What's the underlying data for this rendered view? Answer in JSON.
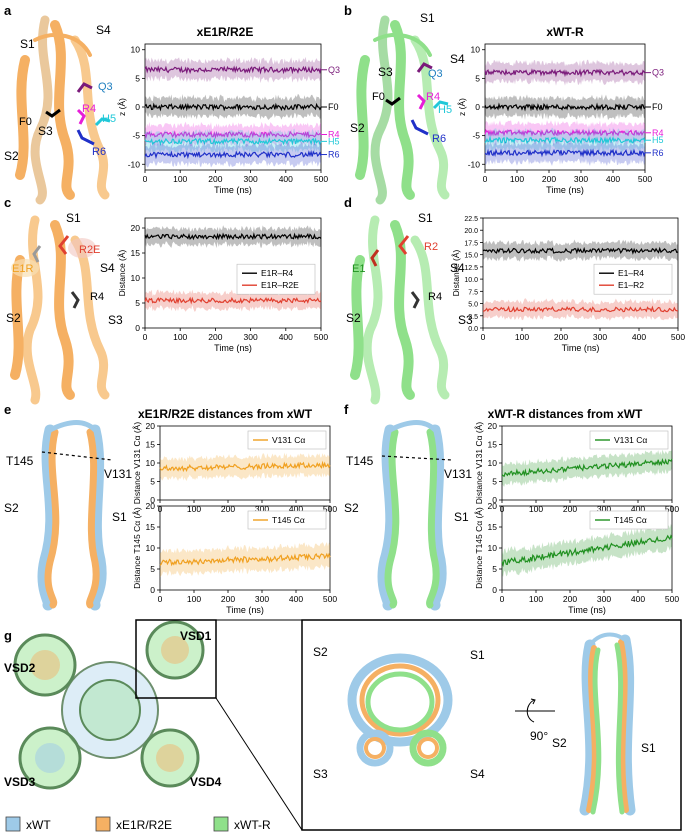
{
  "panel_letters": {
    "a": "a",
    "b": "b",
    "c": "c",
    "d": "d",
    "e": "e",
    "f": "f",
    "g": "g"
  },
  "titles": {
    "a": "xE1R/R2E",
    "b": "xWT-R",
    "e": "xE1R/R2E distances from xWT",
    "f": "xWT-R distances from xWT"
  },
  "structure_labels": {
    "a": {
      "S1": "S1",
      "S4": "S4",
      "Q3": "Q3",
      "R4": "R4",
      "F0": "F0",
      "S3": "S3",
      "H5": "H5",
      "S2": "S2",
      "R6": "R6"
    },
    "b": {
      "S1": "S1",
      "S3": "S3",
      "Q3": "Q3",
      "S4": "S4",
      "F0": "F0",
      "R4": "R4",
      "H5": "H5",
      "S2": "S2",
      "R6": "R6"
    },
    "c": {
      "S1": "S1",
      "R2E": "R2E",
      "E1R": "E1R",
      "S4": "S4",
      "R4": "R4",
      "S2": "S2",
      "S3": "S3"
    },
    "d": {
      "S1": "S1",
      "R2": "R2",
      "E1": "E1",
      "S4": "S4",
      "R4": "R4",
      "S2": "S2",
      "S3": "S3"
    },
    "e": {
      "T145": "T145",
      "V131": "V131",
      "S2": "S2",
      "S1": "S1"
    },
    "f": {
      "T145": "T145",
      "V131": "V131",
      "S2": "S2",
      "S1": "S1"
    },
    "g": {
      "VSD1": "VSD1",
      "VSD2": "VSD2",
      "VSD3": "VSD3",
      "VSD4": "VSD4",
      "S1": "S1",
      "S2": "S2",
      "S3": "S3",
      "S4": "S4",
      "S1b": "S1",
      "S2b": "S2",
      "rot": "90°"
    }
  },
  "legend_g": [
    {
      "label": "xWT",
      "color": "#9ecae8"
    },
    {
      "label": "xE1R/R2E",
      "color": "#f5b063"
    },
    {
      "label": "xWT-R",
      "color": "#8fe08a"
    }
  ],
  "colors": {
    "orange": "#f5b063",
    "green": "#8fe08a",
    "blue": "#9ecae8",
    "purple": "#7a1a7a",
    "black": "#000000",
    "grey": "#9a9a9a",
    "magenta": "#e61ed8",
    "cyan": "#20c8d8",
    "navy": "#2030c8",
    "red": "#e04030",
    "dkorange": "#f0a020",
    "dkgreen": "#209020"
  },
  "chart_data": [
    {
      "id": "a",
      "type": "line",
      "title": "xE1R/R2E",
      "xlabel": "Time (ns)",
      "ylabel": "z (Å)",
      "xlim": [
        0,
        500
      ],
      "ylim": [
        -11,
        11
      ],
      "xticks": [
        0,
        100,
        200,
        300,
        400,
        500
      ],
      "yticks": [
        -10,
        -5,
        0,
        5,
        10
      ],
      "series": [
        {
          "name": "Q3",
          "mean": 6.5,
          "color": "purple"
        },
        {
          "name": "F0",
          "mean": 0,
          "color": "black"
        },
        {
          "name": "R4",
          "mean": -4.8,
          "color": "magenta"
        },
        {
          "name": "H5",
          "mean": -6.0,
          "color": "cyan"
        },
        {
          "name": "R6",
          "mean": -8.3,
          "color": "navy"
        }
      ]
    },
    {
      "id": "b",
      "type": "line",
      "title": "xWT-R",
      "xlabel": "Time (ns)",
      "ylabel": "z (Å)",
      "xlim": [
        0,
        500
      ],
      "ylim": [
        -11,
        11
      ],
      "xticks": [
        0,
        100,
        200,
        300,
        400,
        500
      ],
      "yticks": [
        -10,
        -5,
        0,
        5,
        10
      ],
      "series": [
        {
          "name": "Q3",
          "mean": 6.0,
          "color": "purple"
        },
        {
          "name": "F0",
          "mean": 0,
          "color": "black"
        },
        {
          "name": "R4",
          "mean": -4.5,
          "color": "magenta"
        },
        {
          "name": "H5",
          "mean": -5.8,
          "color": "cyan"
        },
        {
          "name": "R6",
          "mean": -8.0,
          "color": "navy"
        }
      ]
    },
    {
      "id": "c",
      "type": "line",
      "xlabel": "Time (ns)",
      "ylabel": "Distance (Å)",
      "xlim": [
        0,
        500
      ],
      "ylim": [
        0,
        22
      ],
      "xticks": [
        0,
        100,
        200,
        300,
        400,
        500
      ],
      "yticks": [
        0,
        5,
        10,
        15,
        20
      ],
      "legend": [
        "E1R–R4",
        "E1R–R2E"
      ],
      "series": [
        {
          "name": "E1R–R4",
          "mean": 18.3,
          "color": "black"
        },
        {
          "name": "E1R–R2E",
          "mean": 5.5,
          "color": "red"
        }
      ]
    },
    {
      "id": "d",
      "type": "line",
      "xlabel": "Time (ns)",
      "ylabel": "Distance (Å)",
      "xlim": [
        0,
        500
      ],
      "ylim": [
        0,
        22.5
      ],
      "xticks": [
        0,
        100,
        200,
        300,
        400,
        500
      ],
      "yticks": [
        0.0,
        2.5,
        5.0,
        7.5,
        10.0,
        12.5,
        15.0,
        17.5,
        20.0,
        22.5
      ],
      "ytick_labels": [
        "0.0",
        "2.5",
        "5.0",
        "7.5",
        "10.0",
        "12.5",
        "15.0",
        "17.5",
        "20.0",
        "22.5"
      ],
      "legend": [
        "E1–R4",
        "E1–R2"
      ],
      "series": [
        {
          "name": "E1–R4",
          "mean": 15.8,
          "color": "black"
        },
        {
          "name": "E1–R2",
          "mean": 3.8,
          "color": "red"
        }
      ]
    },
    {
      "id": "e1",
      "type": "line",
      "xlabel": "",
      "ylabel": "Distance V131 Cα (Å)",
      "xlim": [
        0,
        500
      ],
      "ylim": [
        0,
        20
      ],
      "xticks": [
        0,
        100,
        200,
        300,
        400,
        500
      ],
      "yticks": [
        0,
        5,
        10,
        15,
        20
      ],
      "legend": [
        "V131 Cα"
      ],
      "series": [
        {
          "name": "V131 Cα",
          "start": 8.5,
          "end": 9.5,
          "color": "dkorange"
        }
      ]
    },
    {
      "id": "e2",
      "type": "line",
      "xlabel": "Time (ns)",
      "ylabel": "Distance T145 Cα (Å)",
      "xlim": [
        0,
        500
      ],
      "ylim": [
        0,
        20
      ],
      "xticks": [
        0,
        100,
        200,
        300,
        400,
        500
      ],
      "yticks": [
        0,
        5,
        10,
        15,
        20
      ],
      "legend": [
        "T145 Cα"
      ],
      "series": [
        {
          "name": "T145 Cα",
          "start": 6.5,
          "end": 8,
          "color": "dkorange"
        }
      ]
    },
    {
      "id": "f1",
      "type": "line",
      "xlabel": "",
      "ylabel": "Distance V131 Cα (Å)",
      "xlim": [
        0,
        500
      ],
      "ylim": [
        0,
        20
      ],
      "xticks": [
        0,
        100,
        200,
        300,
        400,
        500
      ],
      "yticks": [
        0,
        5,
        10,
        15,
        20
      ],
      "legend": [
        "V131 Cα"
      ],
      "series": [
        {
          "name": "V131 Cα",
          "start": 7,
          "end": 10.5,
          "color": "dkgreen"
        }
      ]
    },
    {
      "id": "f2",
      "type": "line",
      "xlabel": "Time (ns)",
      "ylabel": "Distance T145 Cα (Å)",
      "xlim": [
        0,
        500
      ],
      "ylim": [
        0,
        20
      ],
      "xticks": [
        0,
        100,
        200,
        300,
        400,
        500
      ],
      "yticks": [
        0,
        5,
        10,
        15,
        20
      ],
      "legend": [
        "T145 Cα"
      ],
      "series": [
        {
          "name": "T145 Cα",
          "start": 6.5,
          "end": 12.5,
          "color": "dkgreen"
        }
      ]
    }
  ]
}
